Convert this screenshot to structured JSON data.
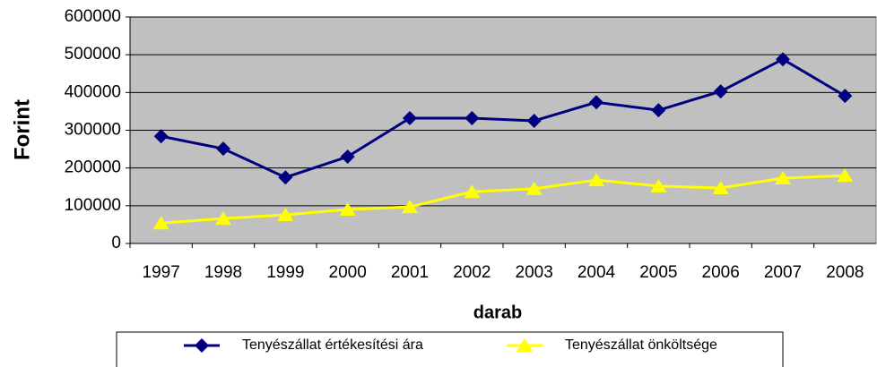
{
  "chart_data": {
    "type": "line",
    "x_label": "darab",
    "y_label": "Forint",
    "categories": [
      "1997",
      "1998",
      "1999",
      "2000",
      "2001",
      "2002",
      "2003",
      "2004",
      "2005",
      "2006",
      "2007",
      "2008"
    ],
    "series": [
      {
        "name": "Tenyészállat értékesítési ára",
        "color": "#000080",
        "marker": "diamond",
        "values": [
          284000,
          251000,
          175000,
          230000,
          332000,
          332000,
          325000,
          374000,
          353000,
          403000,
          488000,
          391000
        ]
      },
      {
        "name": "Tenyészállat önköltsége",
        "color": "#ffff00",
        "marker": "triangle",
        "values": [
          54000,
          66000,
          76000,
          90000,
          97000,
          137000,
          145000,
          168000,
          152000,
          147000,
          173000,
          180000
        ]
      }
    ],
    "ylim": [
      0,
      600000
    ],
    "yticks": [
      0,
      100000,
      200000,
      300000,
      400000,
      500000,
      600000
    ],
    "grid": true,
    "legend": "bottom",
    "plot_background": "#c0c0c0"
  }
}
